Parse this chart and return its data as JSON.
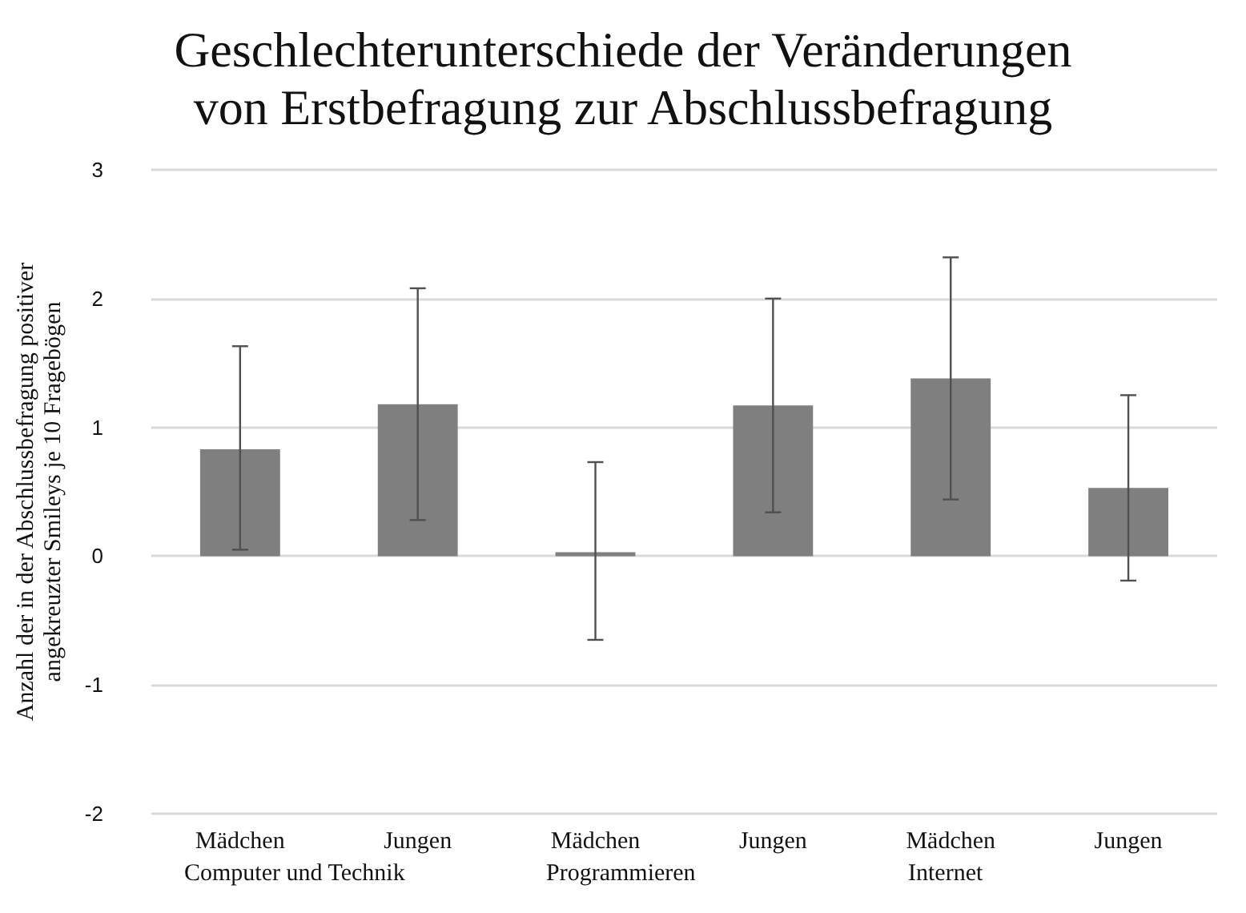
{
  "chart_data": {
    "type": "bar",
    "title": "Geschlechterunterschiede der Veränderungen\nvon Erstbefragung zur Abschlussbefragung",
    "ylabel": "Anzahl der in der Abschlussbefragung positiver\nangekreuzter Smileys je 10 Fragebögen",
    "categories": [
      "Mädchen",
      "Jungen",
      "Mädchen",
      "Jungen",
      "Mädchen",
      "Jungen"
    ],
    "values": [
      0.83,
      1.18,
      0.03,
      1.17,
      1.38,
      0.53
    ],
    "errors": [
      [
        0.05,
        1.63
      ],
      [
        0.28,
        2.08
      ],
      [
        -0.65,
        0.73
      ],
      [
        0.34,
        2.0
      ],
      [
        0.44,
        2.32
      ],
      [
        -0.19,
        1.25
      ]
    ],
    "color": "#7f7f7f",
    "annotations": [
      "Computer und Technik",
      "Programmieren",
      "Internet"
    ],
    "ylim": [
      -2,
      3
    ],
    "yticks": [
      -2,
      -1,
      0,
      1,
      2,
      3
    ],
    "grid": "y"
  }
}
